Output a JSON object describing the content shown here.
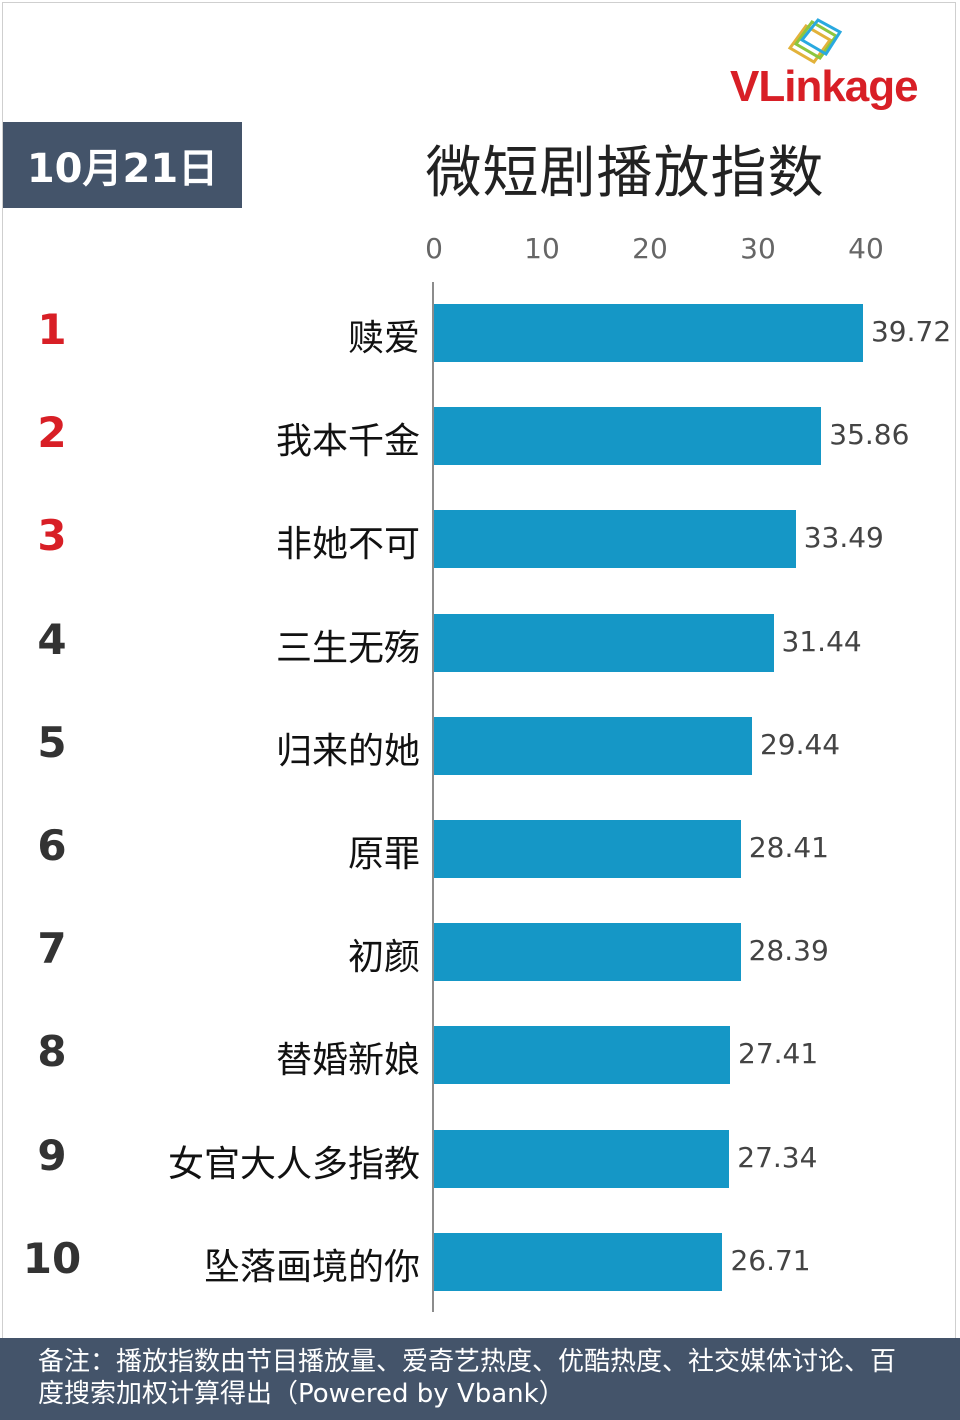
{
  "brand": {
    "logo_part1": "VLink",
    "logo_part2": "age"
  },
  "date_label": "10月21日",
  "colors": {
    "bar": "#1597c6",
    "header_bg": "#44546a",
    "top_rank": "#d81f26"
  },
  "chart_data": {
    "type": "bar",
    "orientation": "horizontal",
    "title": "微短剧播放指数",
    "xlim": [
      0,
      40
    ],
    "ticks": [
      "0",
      "10",
      "20",
      "30",
      "40"
    ],
    "ranks": [
      "1",
      "2",
      "3",
      "4",
      "5",
      "6",
      "7",
      "8",
      "9",
      "10"
    ],
    "categories": [
      "赎爱",
      "我本千金",
      "非她不可",
      "三生无殇",
      "归来的她",
      "原罪",
      "初颜",
      "替婚新娘",
      "女官大人多指教",
      "坠落画境的你"
    ],
    "values": [
      39.72,
      35.86,
      33.49,
      31.44,
      29.44,
      28.41,
      28.39,
      27.41,
      27.34,
      26.71
    ],
    "value_labels": [
      "39.72",
      "35.86",
      "33.49",
      "31.44",
      "29.44",
      "28.41",
      "28.39",
      "27.41",
      "27.34",
      "26.71"
    ]
  },
  "footer_note": "备注：播放指数由节目播放量、爱奇艺热度、优酷热度、社交媒体讨论、百度搜索加权计算得出（Powered by Vbank）"
}
